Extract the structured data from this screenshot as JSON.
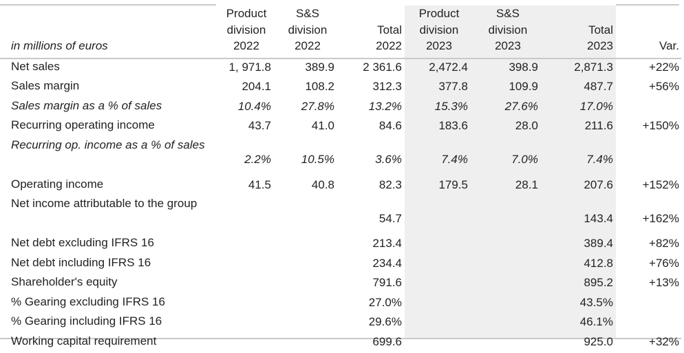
{
  "table": {
    "header": {
      "units_label": "in millions of euros",
      "columns": [
        {
          "line1": "Product",
          "line2": "division",
          "line3": "2022"
        },
        {
          "line1": "S&S",
          "line2": "division",
          "line3": "2022"
        },
        {
          "line1": "",
          "line2": "Total",
          "line3": "2022"
        },
        {
          "line1": "Product",
          "line2": "division",
          "line3": "2023"
        },
        {
          "line1": "S&S",
          "line2": "division",
          "line3": "2023"
        },
        {
          "line1": "",
          "line2": "Total",
          "line3": "2023"
        },
        {
          "line1": "",
          "line2": "",
          "line3": "Var."
        }
      ]
    },
    "rows": [
      {
        "label": "Net sales",
        "values": [
          "1, 971.8",
          "389.9",
          "2 361.6",
          "2,472.4",
          "398.9",
          "2,871.3",
          "+22%"
        ]
      },
      {
        "label": "Sales margin",
        "values": [
          "204.1",
          "108.2",
          "312.3",
          "377.8",
          "109.9",
          "487.7",
          "+56%"
        ]
      },
      {
        "label": "Sales margin as a % of sales",
        "values": [
          "10.4%",
          "27.8%",
          "13.2%",
          "15.3%",
          "27.6%",
          "17.0%",
          ""
        ]
      },
      {
        "label": "Recurring operating income",
        "values": [
          "43.7",
          "41.0",
          "84.6",
          "183.6",
          "28.0",
          "211.6",
          "+150%"
        ]
      },
      {
        "label": "Recurring op. income as a % of sales",
        "values": [
          "2.2%",
          "10.5%",
          "3.6%",
          "7.4%",
          "7.0%",
          "7.4%",
          ""
        ]
      },
      {
        "label": "Operating income",
        "values": [
          "41.5",
          "40.8",
          "82.3",
          "179.5",
          "28.1",
          "207.6",
          "+152%"
        ]
      },
      {
        "label": "Net income attributable to the group",
        "values": [
          "",
          "",
          "54.7",
          "",
          "",
          "143.4",
          "+162%"
        ]
      },
      {
        "label": "Net debt excluding IFRS 16",
        "values": [
          "",
          "",
          "213.4",
          "",
          "",
          "389.4",
          "+82%"
        ]
      },
      {
        "label": "Net debt including IFRS 16",
        "values": [
          "",
          "",
          "234.4",
          "",
          "",
          "412.8",
          "+76%"
        ]
      },
      {
        "label": "Shareholder's equity",
        "values": [
          "",
          "",
          "791.6",
          "",
          "",
          "895.2",
          "+13%"
        ]
      },
      {
        "label": "% Gearing excluding IFRS 16",
        "values": [
          "",
          "",
          "27.0%",
          "",
          "",
          "43.5%",
          ""
        ]
      },
      {
        "label": "% Gearing including IFRS 16",
        "values": [
          "",
          "",
          "29.6%",
          "",
          "",
          "46.1%",
          ""
        ]
      },
      {
        "label": "Working capital requirement",
        "values": [
          "",
          "",
          "699.6",
          "",
          "",
          "925.0",
          "+32%"
        ]
      }
    ]
  }
}
